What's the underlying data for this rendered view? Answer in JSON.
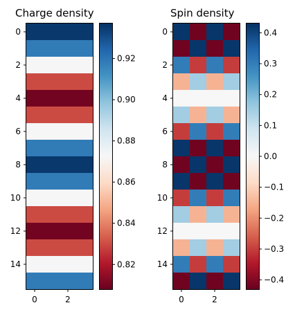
{
  "chart_data": [
    {
      "type": "heatmap",
      "title": "Charge density",
      "x_ticks": [
        0,
        2
      ],
      "y_ticks": [
        0,
        2,
        4,
        6,
        8,
        10,
        12,
        14
      ],
      "colormap": "RdBu",
      "colorbar": {
        "range": [
          0.808,
          0.937
        ],
        "ticks": [
          "0.82",
          "0.84",
          "0.86",
          "0.88",
          "0.90",
          "0.92"
        ]
      },
      "values": [
        [
          0.935,
          0.935,
          0.935,
          0.935
        ],
        [
          0.918,
          0.918,
          0.918,
          0.918
        ],
        [
          0.873,
          0.873,
          0.873,
          0.873
        ],
        [
          0.83,
          0.83,
          0.83,
          0.83
        ],
        [
          0.81,
          0.81,
          0.81,
          0.81
        ],
        [
          0.83,
          0.83,
          0.83,
          0.83
        ],
        [
          0.873,
          0.873,
          0.873,
          0.873
        ],
        [
          0.918,
          0.918,
          0.918,
          0.918
        ],
        [
          0.935,
          0.935,
          0.935,
          0.935
        ],
        [
          0.918,
          0.918,
          0.918,
          0.918
        ],
        [
          0.873,
          0.873,
          0.873,
          0.873
        ],
        [
          0.83,
          0.83,
          0.83,
          0.83
        ],
        [
          0.81,
          0.81,
          0.81,
          0.81
        ],
        [
          0.83,
          0.83,
          0.83,
          0.83
        ],
        [
          0.873,
          0.873,
          0.873,
          0.873
        ],
        [
          0.918,
          0.918,
          0.918,
          0.918
        ]
      ]
    },
    {
      "type": "heatmap",
      "title": "Spin density",
      "x_ticks": [
        0,
        2
      ],
      "y_ticks": [
        0,
        2,
        4,
        6,
        8,
        10,
        12,
        14
      ],
      "colormap": "RdBu",
      "colorbar": {
        "range": [
          -0.43,
          0.43
        ],
        "ticks": [
          "−0.4",
          "−0.3",
          "−0.2",
          "−0.1",
          "0.0",
          "0.1",
          "0.2",
          "0.3",
          "0.4"
        ]
      },
      "values": [
        [
          0.42,
          -0.42,
          0.42,
          -0.42
        ],
        [
          -0.42,
          0.42,
          -0.42,
          0.42
        ],
        [
          0.3,
          -0.3,
          0.3,
          -0.3
        ],
        [
          -0.15,
          0.15,
          -0.15,
          0.15
        ],
        [
          0.0,
          0.0,
          0.0,
          0.0
        ],
        [
          0.15,
          -0.15,
          0.15,
          -0.15
        ],
        [
          -0.3,
          0.3,
          -0.3,
          0.3
        ],
        [
          0.42,
          -0.42,
          0.42,
          -0.42
        ],
        [
          -0.42,
          0.42,
          -0.42,
          0.42
        ],
        [
          0.42,
          -0.42,
          0.42,
          -0.42
        ],
        [
          -0.3,
          0.3,
          -0.3,
          0.3
        ],
        [
          0.15,
          -0.15,
          0.15,
          -0.15
        ],
        [
          0.0,
          0.0,
          0.0,
          0.0
        ],
        [
          -0.15,
          0.15,
          -0.15,
          0.15
        ],
        [
          0.3,
          -0.3,
          0.3,
          -0.3
        ],
        [
          -0.42,
          0.42,
          -0.42,
          0.42
        ]
      ]
    }
  ]
}
